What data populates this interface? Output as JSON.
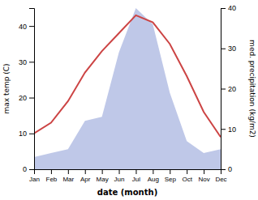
{
  "chart_data": {
    "type": "line",
    "xlabel": "date (month)",
    "ylabel": "max temp (C)",
    "y2label": "med. precipitation (kg/m2)",
    "categories": [
      "Jan",
      "Feb",
      "Mar",
      "Apr",
      "May",
      "Jun",
      "Jul",
      "Aug",
      "Sep",
      "Oct",
      "Nov",
      "Dec"
    ],
    "series": [
      {
        "type": "area",
        "axis": "y2",
        "color": "#bfc8e8",
        "values": [
          3,
          4,
          5,
          12,
          13,
          29,
          40,
          36,
          19,
          7,
          4,
          5
        ]
      },
      {
        "type": "line",
        "color": "#cc4444",
        "values": [
          10,
          13,
          19,
          27,
          33,
          38,
          43,
          41,
          35,
          26,
          16,
          9
        ]
      }
    ],
    "ylim": [
      0,
      45
    ],
    "yticks": [
      0,
      10,
      20,
      30,
      40
    ],
    "y2lim": [
      0,
      40
    ],
    "y2ticks": [
      0,
      10,
      20,
      30,
      40
    ],
    "grid": false
  }
}
